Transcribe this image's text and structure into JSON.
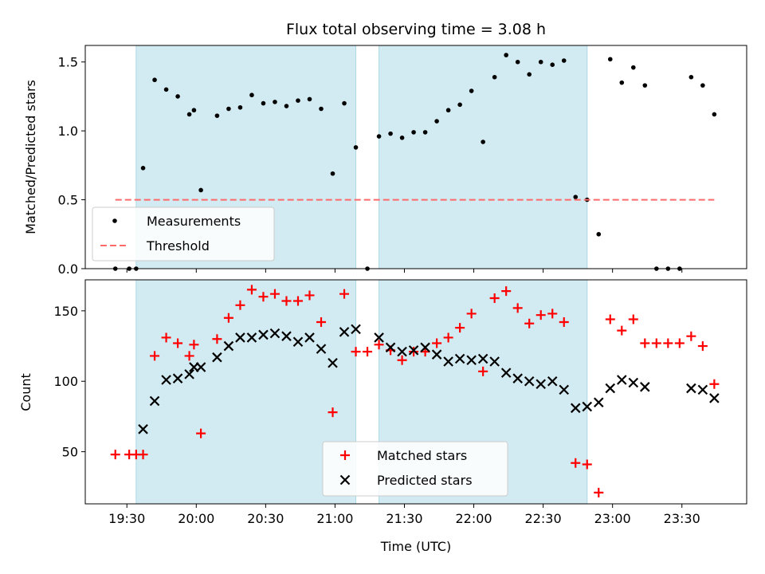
{
  "chart_data": [
    {
      "type": "scatter",
      "title": "Flux total observing time = 3.08 h",
      "ylabel": "Matched/Predicted stars",
      "xlabel": "",
      "xlim": [
        "19:12",
        "23:58"
      ],
      "ylim": [
        0,
        1.62
      ],
      "yticks": [
        0.0,
        0.5,
        1.0,
        1.5
      ],
      "ytick_labels": [
        "0.0",
        "0.5",
        "1.0",
        "1.5"
      ],
      "legend_position": "lower-left",
      "grid": false,
      "shaded_intervals": [
        [
          "19:34",
          "21:09"
        ],
        [
          "21:19",
          "22:49"
        ]
      ],
      "shade_color": "#add8e6",
      "series": [
        {
          "name": "Measurements",
          "kind": "scatter",
          "marker": "dot",
          "color": "#000000",
          "points": [
            [
              "19:25",
              0.0
            ],
            [
              "19:31",
              0.0
            ],
            [
              "19:34",
              0.0
            ],
            [
              "19:37",
              0.73
            ],
            [
              "19:42",
              1.37
            ],
            [
              "19:47",
              1.3
            ],
            [
              "19:52",
              1.25
            ],
            [
              "19:57",
              1.12
            ],
            [
              "19:59",
              1.15
            ],
            [
              "20:02",
              0.57
            ],
            [
              "20:09",
              1.11
            ],
            [
              "20:14",
              1.16
            ],
            [
              "20:19",
              1.17
            ],
            [
              "20:24",
              1.26
            ],
            [
              "20:29",
              1.2
            ],
            [
              "20:34",
              1.21
            ],
            [
              "20:39",
              1.18
            ],
            [
              "20:44",
              1.22
            ],
            [
              "20:49",
              1.23
            ],
            [
              "20:54",
              1.16
            ],
            [
              "20:59",
              0.69
            ],
            [
              "21:04",
              1.2
            ],
            [
              "21:09",
              0.88
            ],
            [
              "21:14",
              0.0
            ],
            [
              "21:19",
              0.96
            ],
            [
              "21:24",
              0.98
            ],
            [
              "21:29",
              0.95
            ],
            [
              "21:34",
              0.99
            ],
            [
              "21:39",
              0.99
            ],
            [
              "21:44",
              1.07
            ],
            [
              "21:49",
              1.15
            ],
            [
              "21:54",
              1.19
            ],
            [
              "21:59",
              1.29
            ],
            [
              "22:04",
              0.92
            ],
            [
              "22:09",
              1.39
            ],
            [
              "22:14",
              1.55
            ],
            [
              "22:19",
              1.5
            ],
            [
              "22:24",
              1.41
            ],
            [
              "22:29",
              1.5
            ],
            [
              "22:34",
              1.48
            ],
            [
              "22:39",
              1.51
            ],
            [
              "22:44",
              0.52
            ],
            [
              "22:49",
              0.5
            ],
            [
              "22:54",
              0.25
            ],
            [
              "22:59",
              1.52
            ],
            [
              "23:04",
              1.35
            ],
            [
              "23:09",
              1.46
            ],
            [
              "23:14",
              1.33
            ],
            [
              "23:19",
              0.0
            ],
            [
              "23:24",
              0.0
            ],
            [
              "23:29",
              0.0
            ],
            [
              "23:34",
              1.39
            ],
            [
              "23:39",
              1.33
            ],
            [
              "23:44",
              1.12
            ]
          ]
        },
        {
          "name": "Threshold",
          "kind": "line",
          "style": "dashed",
          "color": "#ff6b6b",
          "x": [
            "19:25",
            "23:44"
          ],
          "y": [
            0.5,
            0.5
          ]
        }
      ]
    },
    {
      "type": "scatter",
      "title": "",
      "ylabel": "Count",
      "xlabel": "Time (UTC)",
      "xlim": [
        "19:12",
        "23:58"
      ],
      "ylim": [
        13,
        172
      ],
      "yticks": [
        50,
        100,
        150
      ],
      "ytick_labels": [
        "50",
        "100",
        "150"
      ],
      "xticks": [
        "19:30",
        "20:00",
        "20:30",
        "21:00",
        "21:30",
        "22:00",
        "22:30",
        "23:00",
        "23:30"
      ],
      "legend_position": "lower-center",
      "grid": false,
      "shaded_intervals": [
        [
          "19:34",
          "21:09"
        ],
        [
          "21:19",
          "22:49"
        ]
      ],
      "shade_color": "#add8e6",
      "series": [
        {
          "name": "Matched stars",
          "kind": "scatter",
          "marker": "plus",
          "color": "#ff0000",
          "points": [
            [
              "19:25",
              48
            ],
            [
              "19:31",
              48
            ],
            [
              "19:34",
              48
            ],
            [
              "19:37",
              48
            ],
            [
              "19:42",
              118
            ],
            [
              "19:47",
              131
            ],
            [
              "19:52",
              127
            ],
            [
              "19:57",
              118
            ],
            [
              "19:59",
              126
            ],
            [
              "20:02",
              63
            ],
            [
              "20:09",
              130
            ],
            [
              "20:14",
              145
            ],
            [
              "20:19",
              154
            ],
            [
              "20:24",
              165
            ],
            [
              "20:29",
              160
            ],
            [
              "20:34",
              162
            ],
            [
              "20:39",
              157
            ],
            [
              "20:44",
              157
            ],
            [
              "20:49",
              161
            ],
            [
              "20:54",
              142
            ],
            [
              "20:59",
              78
            ],
            [
              "21:04",
              162
            ],
            [
              "21:09",
              121
            ],
            [
              "21:14",
              121
            ],
            [
              "21:19",
              126
            ],
            [
              "21:24",
              122
            ],
            [
              "21:29",
              115
            ],
            [
              "21:34",
              121
            ],
            [
              "21:39",
              121
            ],
            [
              "21:44",
              127
            ],
            [
              "21:49",
              131
            ],
            [
              "21:54",
              138
            ],
            [
              "21:59",
              148
            ],
            [
              "22:04",
              107
            ],
            [
              "22:09",
              159
            ],
            [
              "22:14",
              164
            ],
            [
              "22:19",
              152
            ],
            [
              "22:24",
              141
            ],
            [
              "22:29",
              147
            ],
            [
              "22:34",
              148
            ],
            [
              "22:39",
              142
            ],
            [
              "22:44",
              42
            ],
            [
              "22:49",
              41
            ],
            [
              "22:54",
              21
            ],
            [
              "22:59",
              144
            ],
            [
              "23:04",
              136
            ],
            [
              "23:09",
              144
            ],
            [
              "23:14",
              127
            ],
            [
              "23:19",
              127
            ],
            [
              "23:24",
              127
            ],
            [
              "23:29",
              127
            ],
            [
              "23:34",
              132
            ],
            [
              "23:39",
              125
            ],
            [
              "23:44",
              98
            ]
          ]
        },
        {
          "name": "Predicted stars",
          "kind": "scatter",
          "marker": "x",
          "color": "#000000",
          "points": [
            [
              "19:37",
              66
            ],
            [
              "19:42",
              86
            ],
            [
              "19:47",
              101
            ],
            [
              "19:52",
              102
            ],
            [
              "19:57",
              105
            ],
            [
              "19:59",
              110
            ],
            [
              "20:02",
              110
            ],
            [
              "20:09",
              117
            ],
            [
              "20:14",
              125
            ],
            [
              "20:19",
              131
            ],
            [
              "20:24",
              131
            ],
            [
              "20:29",
              133
            ],
            [
              "20:34",
              134
            ],
            [
              "20:39",
              132
            ],
            [
              "20:44",
              128
            ],
            [
              "20:49",
              131
            ],
            [
              "20:54",
              123
            ],
            [
              "20:59",
              113
            ],
            [
              "21:04",
              135
            ],
            [
              "21:09",
              137
            ],
            [
              "21:19",
              131
            ],
            [
              "21:24",
              124
            ],
            [
              "21:29",
              121
            ],
            [
              "21:34",
              122
            ],
            [
              "21:39",
              124
            ],
            [
              "21:44",
              119
            ],
            [
              "21:49",
              114
            ],
            [
              "21:54",
              116
            ],
            [
              "21:59",
              115
            ],
            [
              "22:04",
              116
            ],
            [
              "22:09",
              114
            ],
            [
              "22:14",
              106
            ],
            [
              "22:19",
              102
            ],
            [
              "22:24",
              100
            ],
            [
              "22:29",
              98
            ],
            [
              "22:34",
              100
            ],
            [
              "22:39",
              94
            ],
            [
              "22:44",
              81
            ],
            [
              "22:49",
              82
            ],
            [
              "22:54",
              85
            ],
            [
              "22:59",
              95
            ],
            [
              "23:04",
              101
            ],
            [
              "23:09",
              99
            ],
            [
              "23:14",
              96
            ],
            [
              "23:34",
              95
            ],
            [
              "23:39",
              94
            ],
            [
              "23:44",
              88
            ]
          ]
        }
      ]
    }
  ]
}
